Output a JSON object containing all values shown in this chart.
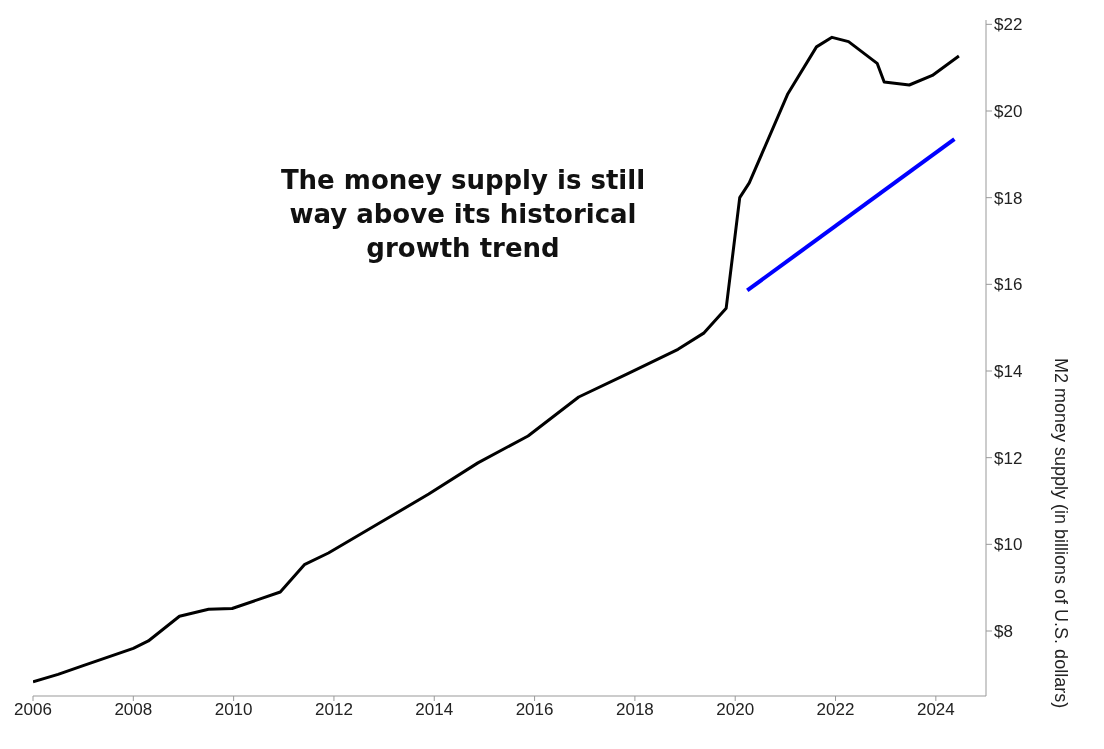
{
  "chart_data": {
    "type": "line",
    "ylabel": "M2 money supply (in billions of U.S. dollars)",
    "annotations": [
      "The money supply is still way above its historical growth trend"
    ],
    "series": [
      {
        "color": "#000000",
        "x": [
          2006.0,
          2006.5,
          2007.0,
          2008.0,
          2008.3,
          2008.92,
          2009.5,
          2009.97,
          2010.93,
          2011.41,
          2011.89,
          2012.89,
          2013.89,
          2014.87,
          2015.87,
          2016.88,
          2017.86,
          2018.86,
          2019.38,
          2019.82,
          2020.09,
          2020.28,
          2021.05,
          2021.62,
          2021.93,
          2022.26,
          2022.83,
          2022.97,
          2023.47,
          2023.93,
          2024.46
        ],
        "values": [
          6.83,
          7.0,
          7.2,
          7.6,
          7.77,
          8.34,
          8.5,
          8.52,
          8.9,
          9.53,
          9.8,
          10.48,
          11.16,
          11.88,
          12.5,
          13.4,
          13.94,
          14.5,
          14.88,
          15.45,
          18.0,
          18.34,
          20.4,
          21.48,
          21.7,
          21.6,
          21.1,
          20.67,
          20.6,
          20.82,
          21.27
        ]
      },
      {
        "color": "#0000ff",
        "x": [
          2020.24,
          2024.37
        ],
        "values": [
          15.86,
          19.35
        ]
      }
    ],
    "xlim": [
      2006,
      2025
    ],
    "xticks": [
      2006,
      2008,
      2010,
      2012,
      2014,
      2016,
      2018,
      2020,
      2022,
      2024
    ],
    "ylim": [
      6.5,
      22.1
    ],
    "yticks": [
      {
        "value": 8,
        "label": "$8"
      },
      {
        "value": 10,
        "label": "$10"
      },
      {
        "value": 12,
        "label": "$12"
      },
      {
        "value": 14,
        "label": "$14"
      },
      {
        "value": 16,
        "label": "$16"
      },
      {
        "value": 18,
        "label": "$18"
      },
      {
        "value": 20,
        "label": "$20"
      },
      {
        "value": 22,
        "label": "$22"
      }
    ],
    "grid": false,
    "marker": "none",
    "line_style": "solid"
  }
}
